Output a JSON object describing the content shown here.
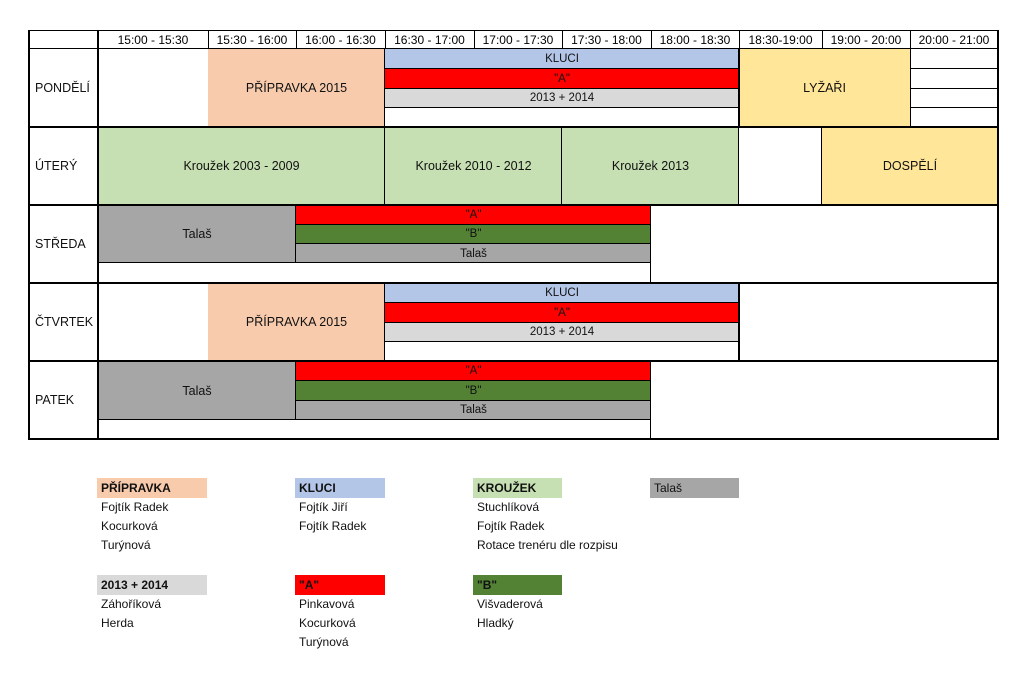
{
  "colors": {
    "pripravka": "#F8CBAD",
    "kluci": "#B4C6E7",
    "krouzek": "#C6E0B4",
    "talas": "#A6A6A6",
    "red_a": "#FF0000",
    "green_b": "#548235",
    "light_gray": "#D9D9D9",
    "yellow": "#FFE699"
  },
  "header": {
    "times": [
      "15:00 - 15:30",
      "15:30 - 16:00",
      "16:00 - 16:30",
      "16:30 - 17:00",
      "17:00 - 17:30",
      "17:30 - 18:00",
      "18:00 - 18:30",
      "18:30-19:00",
      "19:00 - 20:00",
      "20:00 - 21:00"
    ]
  },
  "days": {
    "pondeli": {
      "label": "PONDĚLÍ",
      "pripravka": "PŘÍPRAVKA 2015",
      "kluci": "KLUCI",
      "a": "\"A\"",
      "y2013": "2013 + 2014",
      "lyzari": "LYŽAŘI"
    },
    "utery": {
      "label": "ÚTERÝ",
      "k1": "Kroužek 2003 - 2009",
      "k2": "Kroužek 2010 - 2012",
      "k3": "Kroužek 2013",
      "dospeli": "DOSPĚLÍ"
    },
    "streda": {
      "label": "STŘEDA",
      "talas1": "Talaš",
      "a": "\"A\"",
      "b": "\"B\"",
      "talas2": "Talaš"
    },
    "ctvrtek": {
      "label": "ČTVRTEK",
      "pripravka": "PŘÍPRAVKA 2015",
      "kluci": "KLUCI",
      "a": "\"A\"",
      "y2013": "2013 + 2014"
    },
    "patek": {
      "label": "PATEK",
      "talas1": "Talaš",
      "a": "\"A\"",
      "b": "\"B\"",
      "talas2": "Talaš"
    }
  },
  "legend": {
    "pripravka": {
      "title": "PŘÍPRAVKA",
      "items": [
        "Fojtík Radek",
        "Kocurková",
        "Turýnová"
      ]
    },
    "kluci": {
      "title": "KLUCI",
      "items": [
        "Fojtík Jiří",
        "Fojtík Radek"
      ]
    },
    "krouzek": {
      "title": "KROUŽEK",
      "items": [
        "Stuchlíková",
        "Fojtík Radek",
        "Rotace trenéru dle rozpisu"
      ]
    },
    "talas": {
      "title": "Talaš",
      "items": []
    },
    "y2013": {
      "title": "2013 + 2014",
      "items": [
        "Záhoříková",
        "Herda"
      ]
    },
    "a": {
      "title": "\"A\"",
      "items": [
        "Pinkavová",
        "Kocurková",
        "Turýnová"
      ]
    },
    "b": {
      "title": "\"B\"",
      "items": [
        "Višvaderová",
        "Hladký"
      ]
    }
  }
}
